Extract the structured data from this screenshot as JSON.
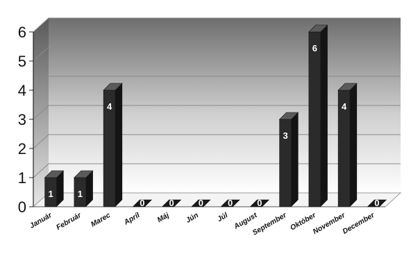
{
  "chart_data": {
    "type": "bar",
    "title": "",
    "xlabel": "",
    "ylabel": "",
    "categories": [
      "Január",
      "Február",
      "Marec",
      "Apríl",
      "Máj",
      "Jún",
      "Júl",
      "August",
      "September",
      "Október",
      "November",
      "December"
    ],
    "values": [
      1,
      1,
      4,
      0,
      0,
      0,
      0,
      0,
      3,
      6,
      4,
      0
    ],
    "data_labels": [
      "1",
      "1",
      "4",
      "0",
      "0",
      "0",
      "0",
      "0",
      "3",
      "6",
      "4",
      "0"
    ],
    "y_ticks": [
      "0",
      "1",
      "2",
      "3",
      "4",
      "5",
      "6"
    ],
    "ylim": [
      0,
      6
    ],
    "grid": true,
    "legend": "none",
    "style": "3d-column",
    "colors": {
      "bar_front": "#2b2b2b",
      "bar_top": "#5a5a5a",
      "bar_side": "#141414",
      "wall_top": "#6e6e6e",
      "wall_bottom": "#ffffff",
      "grid": "#8a8a8a"
    }
  }
}
